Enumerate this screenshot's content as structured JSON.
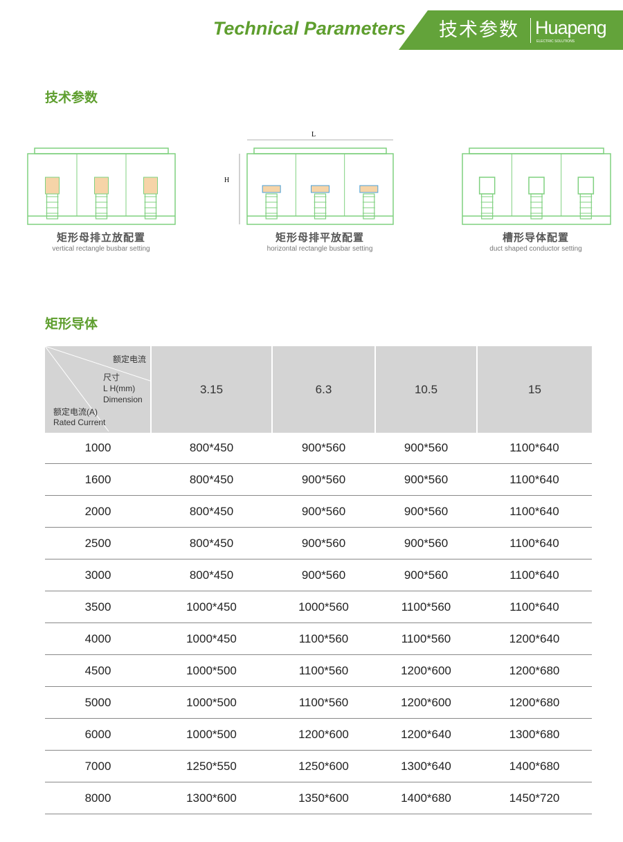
{
  "header": {
    "title_en": "Technical Parameters",
    "title_cn": "技术参数",
    "brand": "Huapeng",
    "brand_sub": "ELECTRIC SOLUTIONS",
    "accent": "#63a33a"
  },
  "section1": {
    "title": "技术参数",
    "diagrams": [
      {
        "cn": "矩形母排立放配置",
        "en": "vertical rectangle busbar setting"
      },
      {
        "cn": "矩形母排平放配置",
        "en": "horizontal rectangle busbar setting",
        "dim_l": "L",
        "dim_h": "H"
      },
      {
        "cn": "槽形导体配置",
        "en": "duct shaped conductor setting"
      }
    ]
  },
  "section2": {
    "title": "矩形导体"
  },
  "table": {
    "corner": {
      "top": "额定电流",
      "mid_cn": "尺寸",
      "mid_unit": "L H(mm)",
      "mid_en": "Dimension",
      "bottom_cn": "额定电流(A)",
      "bottom_en": "Rated Current"
    },
    "columns": [
      "3.15",
      "6.3",
      "10.5",
      "15"
    ],
    "rows": [
      [
        "1000",
        "800*450",
        "900*560",
        "900*560",
        "1100*640"
      ],
      [
        "1600",
        "800*450",
        "900*560",
        "900*560",
        "1100*640"
      ],
      [
        "2000",
        "800*450",
        "900*560",
        "900*560",
        "1100*640"
      ],
      [
        "2500",
        "800*450",
        "900*560",
        "900*560",
        "1100*640"
      ],
      [
        "3000",
        "800*450",
        "900*560",
        "900*560",
        "1100*640"
      ],
      [
        "3500",
        "1000*450",
        "1000*560",
        "1100*560",
        "1100*640"
      ],
      [
        "4000",
        "1000*450",
        "1100*560",
        "1100*560",
        "1200*640"
      ],
      [
        "4500",
        "1000*500",
        "1100*560",
        "1200*600",
        "1200*680"
      ],
      [
        "5000",
        "1000*500",
        "1100*560",
        "1200*600",
        "1200*680"
      ],
      [
        "6000",
        "1000*500",
        "1200*600",
        "1200*640",
        "1300*680"
      ],
      [
        "7000",
        "1250*550",
        "1250*600",
        "1300*640",
        "1400*680"
      ],
      [
        "8000",
        "1300*600",
        "1350*600",
        "1400*680",
        "1450*720"
      ]
    ]
  }
}
